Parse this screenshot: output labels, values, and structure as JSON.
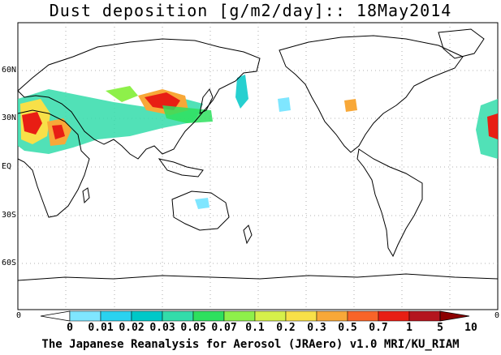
{
  "title": "Dust deposition [g/m2/day]:: 18May2014",
  "lat_labels": [
    "60N",
    "30N",
    "EQ",
    "30S",
    "60S"
  ],
  "colorbar": {
    "edge_left": "0",
    "edge_right": "0",
    "levels": [
      "0",
      "0.01",
      "0.02",
      "0.03",
      "0.05",
      "0.07",
      "0.1",
      "0.2",
      "0.3",
      "0.5",
      "0.7",
      "1",
      "5",
      "10"
    ],
    "colors": [
      "#ffffff",
      "#7fe6ff",
      "#2ad2f0",
      "#00c8c8",
      "#33dcaa",
      "#2ee05e",
      "#8ef04a",
      "#d6f04a",
      "#f8e048",
      "#f8a838",
      "#f86428",
      "#e81e14",
      "#b4141e",
      "#8c0000"
    ]
  },
  "footer": "The Japanese Reanalysis for Aerosol (JRAero) v1.0 MRI/KU_RIAM"
}
